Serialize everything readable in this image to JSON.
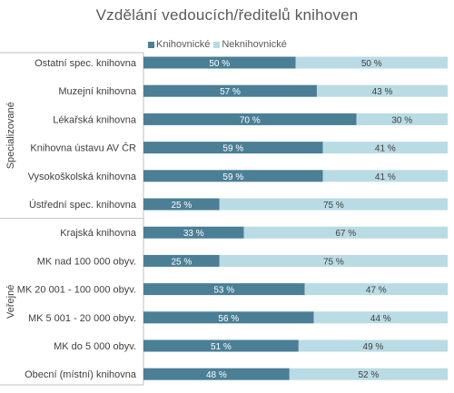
{
  "chart_data": {
    "type": "bar",
    "orientation": "horizontal-stacked-100",
    "title": "Vzdělání vedoucích/ředitelů knihoven",
    "legend_position": "top",
    "series": [
      {
        "name": "Knihovnické",
        "color": "#4a7f96",
        "values": [
          50,
          57,
          70,
          59,
          59,
          25,
          33,
          25,
          53,
          56,
          51,
          48
        ]
      },
      {
        "name": "Neknihovnické",
        "color": "#b9dbe4",
        "values": [
          50,
          43,
          30,
          41,
          41,
          75,
          67,
          75,
          47,
          44,
          49,
          52
        ]
      }
    ],
    "value_labels": [
      [
        "50 %",
        "57 %",
        "70 %",
        "59 %",
        "59 %",
        "25 %",
        "33 %",
        "25 %",
        "53 %",
        "56 %",
        "51 %",
        "48 %"
      ],
      [
        "50 %",
        "43 %",
        "30 %",
        "41 %",
        "41 %",
        "75 %",
        "67 %",
        "75 %",
        "47 %",
        "44 %",
        "49 %",
        "52 %"
      ]
    ],
    "categories": [
      "Ostatní spec. knihovna",
      "Muzejní knihovna",
      "Lékařská knihovna",
      "Knihovna ústavu AV ČR",
      "Vysokoškolská knihovna",
      "Ústřední spec. knihovna",
      "Krajská knihovna",
      "MK nad 100 000 obyv.",
      "MK 20 001 - 100 000 obyv.",
      "MK  5 001 - 20 000 obyv.",
      "MK do 5 000 obyv.",
      "Obecní (místní) knihovna"
    ],
    "groups": [
      {
        "name": "Specializované",
        "count": 6
      },
      {
        "name": "Veřejné",
        "count": 6
      }
    ],
    "xlim": [
      0,
      100
    ],
    "grid": false
  }
}
